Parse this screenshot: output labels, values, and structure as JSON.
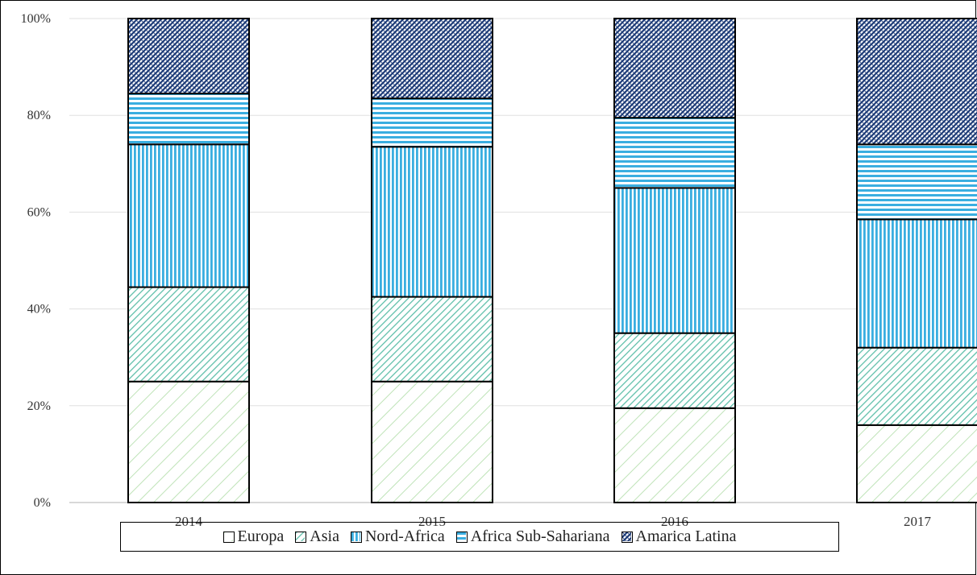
{
  "chart_data": {
    "type": "bar",
    "stacked": true,
    "percent": true,
    "categories": [
      "2014",
      "2015",
      "2016",
      "2017"
    ],
    "series": [
      {
        "name": "Europa",
        "values": [
          25,
          25,
          19.5,
          16
        ],
        "pattern": "light-diagonal",
        "color": "#c8e6c0"
      },
      {
        "name": "Asia",
        "values": [
          19.5,
          17.5,
          15.5,
          16
        ],
        "pattern": "diagonal",
        "color": "#5fbfaa"
      },
      {
        "name": "Nord-Africa",
        "values": [
          29.5,
          31,
          30,
          26.5
        ],
        "pattern": "vertical",
        "color": "#3aaee0"
      },
      {
        "name": "Africa Sub-Sahariana",
        "values": [
          10.5,
          10,
          14.5,
          15.5
        ],
        "pattern": "horizontal",
        "color": "#3aaee0"
      },
      {
        "name": "Amarica Latina",
        "values": [
          15.5,
          16.5,
          20.5,
          26
        ],
        "pattern": "crosshatch",
        "color": "#1e3c78"
      }
    ],
    "yticks": [
      "0%",
      "20%",
      "40%",
      "60%",
      "80%",
      "100%"
    ],
    "ylim": [
      0,
      100
    ],
    "grid": true,
    "legend": "bottom"
  }
}
